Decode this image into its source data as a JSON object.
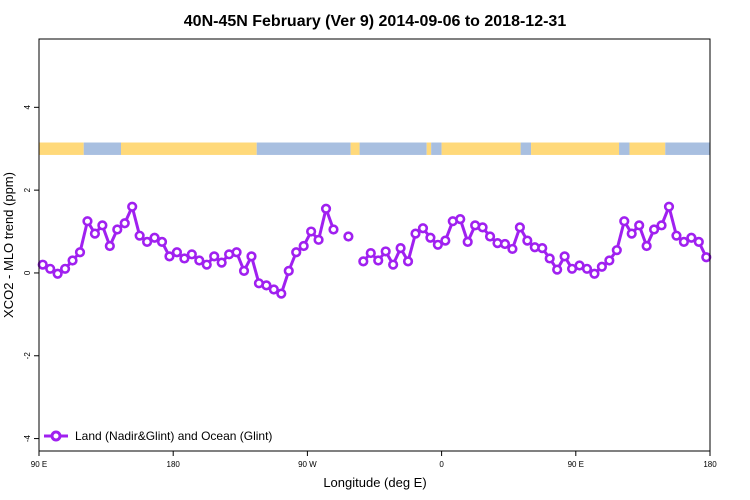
{
  "chart_data": {
    "type": "line",
    "title": "40N-45N February (Ver 9)   2014-09-06 to 2018-12-31",
    "xlabel": "Longitude (deg E)",
    "ylabel": "XCO2 - MLO trend (ppm)",
    "xlim": [
      90,
      540
    ],
    "ylim": [
      -4.3,
      5.65
    ],
    "x_ticks": [
      {
        "value": 90,
        "label": "90 E"
      },
      {
        "value": 180,
        "label": "180"
      },
      {
        "value": 270,
        "label": "90 W"
      },
      {
        "value": 360,
        "label": "0"
      },
      {
        "value": 450,
        "label": "90 E"
      },
      {
        "value": 540,
        "label": "180"
      }
    ],
    "y_ticks": [
      {
        "value": -4,
        "label": "-4"
      },
      {
        "value": -2,
        "label": "-2"
      },
      {
        "value": 0,
        "label": "0"
      },
      {
        "value": 2,
        "label": "2"
      },
      {
        "value": 4,
        "label": "4"
      }
    ],
    "grid": false,
    "legend_position": "bottom-left",
    "series": [
      {
        "name": "Land (Nadir&Glint) and Ocean (Glint)",
        "color": "#a020f0",
        "x": [
          92.5,
          97.5,
          102.5,
          107.5,
          112.5,
          117.5,
          122.5,
          127.5,
          132.5,
          137.5,
          142.5,
          147.5,
          152.5,
          157.5,
          162.5,
          167.5,
          172.5,
          177.5,
          182.5,
          187.5,
          192.5,
          197.5,
          202.5,
          207.5,
          212.5,
          217.5,
          222.5,
          227.5,
          232.5,
          237.5,
          242.5,
          247.5,
          252.5,
          257.5,
          262.5,
          267.5,
          272.5,
          277.5,
          282.5,
          287.5,
          292.5,
          297.5,
          302.5,
          307.5,
          312.5,
          317.5,
          322.5,
          327.5,
          332.5,
          337.5,
          342.5,
          347.5,
          352.5,
          357.5,
          362.5,
          367.5,
          372.5,
          377.5,
          382.5,
          387.5,
          392.5,
          397.5,
          402.5,
          407.5,
          412.5,
          417.5,
          422.5,
          427.5,
          432.5,
          437.5,
          442.5,
          447.5,
          452.5,
          457.5,
          462.5,
          467.5,
          472.5,
          477.5,
          482.5,
          487.5,
          492.5,
          497.5,
          502.5,
          507.5,
          512.5,
          517.5,
          522.5,
          527.5,
          532.5,
          537.5
        ],
        "values": [
          0.2,
          0.1,
          -0.02,
          0.1,
          0.3,
          0.5,
          1.25,
          0.95,
          1.15,
          0.65,
          1.05,
          1.2,
          1.6,
          0.9,
          0.75,
          0.85,
          0.75,
          0.4,
          0.5,
          0.35,
          0.45,
          0.3,
          0.2,
          0.4,
          0.25,
          0.45,
          0.5,
          0.05,
          0.4,
          -0.25,
          -0.3,
          -0.4,
          -0.5,
          0.05,
          0.5,
          0.65,
          1.0,
          0.8,
          1.55,
          1.05,
          null,
          0.88,
          null,
          0.28,
          0.48,
          0.3,
          0.52,
          0.2,
          0.6,
          0.28,
          0.95,
          1.08,
          0.85,
          0.68,
          0.78,
          1.25,
          1.3,
          0.75,
          1.15,
          1.1,
          0.88,
          0.72,
          0.7,
          0.58,
          1.1,
          0.78,
          0.62,
          0.6,
          0.35,
          0.08,
          0.4,
          0.1,
          0.18,
          0.1,
          -0.02,
          0.15,
          0.3,
          0.55,
          1.25,
          0.95,
          1.15,
          0.65,
          1.05,
          1.15,
          1.6,
          0.9,
          0.75,
          0.85,
          0.75,
          0.38
        ]
      }
    ],
    "surface_bar": {
      "y_range": [
        2.85,
        3.15
      ],
      "colors": {
        "land": "#ffd97a",
        "ocean": "#a8bfe0"
      },
      "segments": [
        {
          "type": "land",
          "x": [
            90,
            120
          ]
        },
        {
          "type": "ocean",
          "x": [
            120,
            145
          ]
        },
        {
          "type": "land",
          "x": [
            145,
            236
          ]
        },
        {
          "type": "ocean",
          "x": [
            236,
            299
          ]
        },
        {
          "type": "land",
          "x": [
            299,
            305
          ]
        },
        {
          "type": "ocean",
          "x": [
            305,
            350
          ]
        },
        {
          "type": "land",
          "x": [
            350,
            353
          ]
        },
        {
          "type": "ocean",
          "x": [
            353,
            360
          ]
        },
        {
          "type": "land",
          "x": [
            360,
            413
          ]
        },
        {
          "type": "ocean",
          "x": [
            413,
            420
          ]
        },
        {
          "type": "land",
          "x": [
            420,
            479
          ]
        },
        {
          "type": "ocean",
          "x": [
            479,
            486
          ]
        },
        {
          "type": "land",
          "x": [
            486,
            510
          ]
        },
        {
          "type": "ocean",
          "x": [
            510,
            540
          ]
        }
      ]
    }
  }
}
